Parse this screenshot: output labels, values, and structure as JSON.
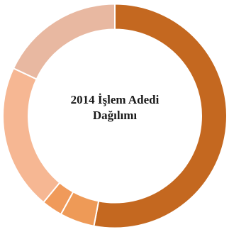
{
  "chart_data": {
    "type": "pie",
    "variant": "donut",
    "title_line1": "2014 İşlem Adedi",
    "title_line2": "Dağılımı",
    "slices": [
      {
        "value": 53.0,
        "color": "#c46820"
      },
      {
        "value": 5.0,
        "color": "#ee9a57"
      },
      {
        "value": 3.0,
        "color": "#f09a5a"
      },
      {
        "value": 21.0,
        "color": "#f6b793"
      },
      {
        "value": 18.0,
        "color": "#e8b8a1"
      }
    ],
    "legend": "none",
    "start_angle_deg": 0,
    "direction": "clockwise"
  }
}
